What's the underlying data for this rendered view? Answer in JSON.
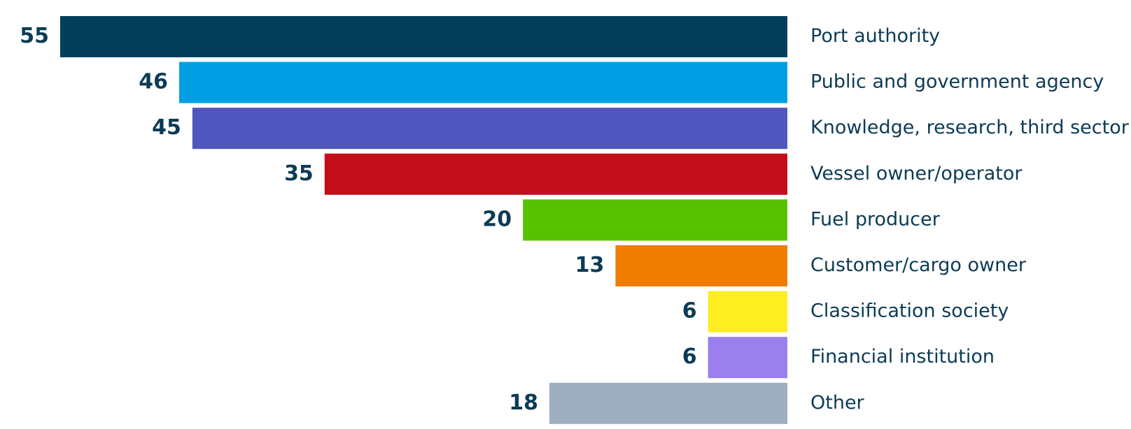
{
  "chart_data": {
    "type": "bar",
    "orientation": "horizontal",
    "direction": "leftward",
    "categories": [
      "Port authority",
      "Public and government agency",
      "Knowledge, research, third sector",
      "Vessel owner/operator",
      "Fuel producer",
      "Customer/cargo owner",
      "Classification society",
      "Financial institution",
      "Other"
    ],
    "values": [
      55,
      46,
      45,
      35,
      20,
      13,
      6,
      6,
      18
    ],
    "colors": [
      "#033f5b",
      "#009fe3",
      "#4f57be",
      "#c20e1a",
      "#58c200",
      "#ef7d00",
      "#fdee21",
      "#9a80ed",
      "#9eafc2"
    ]
  }
}
